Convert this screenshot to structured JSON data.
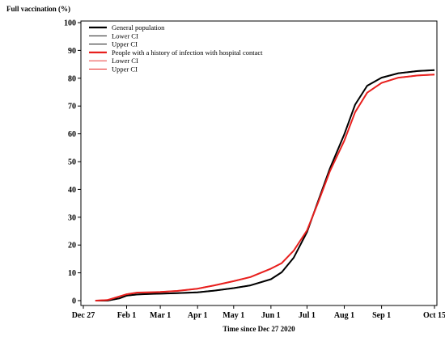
{
  "chart_data": {
    "type": "line",
    "ylabel": "Full vaccination (%)",
    "xlabel": "Time since Dec 27 2020",
    "ylim": [
      0,
      100
    ],
    "yticks": [
      0,
      10,
      20,
      30,
      40,
      50,
      60,
      70,
      80,
      90,
      100
    ],
    "xlim": [
      "2020-12-27",
      "2021-10-15"
    ],
    "xticks": [
      {
        "date": "2020-12-27",
        "label": "Dec 27"
      },
      {
        "date": "2021-02-01",
        "label": "Feb 1"
      },
      {
        "date": "2021-03-01",
        "label": "Mar 1"
      },
      {
        "date": "2021-04-01",
        "label": "Apr 1"
      },
      {
        "date": "2021-05-01",
        "label": "May 1"
      },
      {
        "date": "2021-06-01",
        "label": "Jun 1"
      },
      {
        "date": "2021-07-01",
        "label": "Jul 1"
      },
      {
        "date": "2021-08-01",
        "label": "Aug 1"
      },
      {
        "date": "2021-09-01",
        "label": "Sep 1"
      },
      {
        "date": "2021-10-15",
        "label": "Oct 15"
      }
    ],
    "grid": false,
    "legend_position": "top-left",
    "legend": [
      {
        "label": "General population",
        "color": "#000000",
        "style": "thick"
      },
      {
        "label": "Lower CI",
        "color": "#000000",
        "style": "thin"
      },
      {
        "label": "Upper CI",
        "color": "#000000",
        "style": "thin"
      },
      {
        "label": "People with a history of infection with hospital contact",
        "color": "#e8201e",
        "style": "thick"
      },
      {
        "label": "Lower CI",
        "color": "#e8201e",
        "style": "thin"
      },
      {
        "label": "Upper CI",
        "color": "#e8201e",
        "style": "thin"
      }
    ],
    "series": [
      {
        "name": "General population",
        "color": "#000000",
        "points": [
          [
            "2021-01-06",
            0
          ],
          [
            "2021-01-16",
            0
          ],
          [
            "2021-01-26",
            0.8
          ],
          [
            "2021-02-01",
            1.8
          ],
          [
            "2021-02-10",
            2.2
          ],
          [
            "2021-02-20",
            2.4
          ],
          [
            "2021-03-01",
            2.5
          ],
          [
            "2021-03-15",
            2.7
          ],
          [
            "2021-04-01",
            3.0
          ],
          [
            "2021-04-15",
            3.6
          ],
          [
            "2021-05-01",
            4.5
          ],
          [
            "2021-05-15",
            5.5
          ],
          [
            "2021-06-01",
            7.7
          ],
          [
            "2021-06-10",
            10.2
          ],
          [
            "2021-06-20",
            15.5
          ],
          [
            "2021-07-01",
            24.7
          ],
          [
            "2021-07-10",
            35.5
          ],
          [
            "2021-07-20",
            47.5
          ],
          [
            "2021-08-01",
            59.8
          ],
          [
            "2021-08-10",
            70.5
          ],
          [
            "2021-08-20",
            77.3
          ],
          [
            "2021-09-01",
            80.2
          ],
          [
            "2021-09-15",
            81.8
          ],
          [
            "2021-10-01",
            82.6
          ],
          [
            "2021-10-15",
            82.9
          ]
        ]
      },
      {
        "name": "People with a history of infection with hospital contact",
        "color": "#e8201e",
        "points": [
          [
            "2021-01-06",
            0
          ],
          [
            "2021-01-16",
            0.2
          ],
          [
            "2021-01-26",
            1.5
          ],
          [
            "2021-02-01",
            2.3
          ],
          [
            "2021-02-10",
            2.9
          ],
          [
            "2021-02-20",
            3.0
          ],
          [
            "2021-03-01",
            3.1
          ],
          [
            "2021-03-15",
            3.5
          ],
          [
            "2021-04-01",
            4.3
          ],
          [
            "2021-04-15",
            5.5
          ],
          [
            "2021-05-01",
            7.0
          ],
          [
            "2021-05-15",
            8.5
          ],
          [
            "2021-06-01",
            11.5
          ],
          [
            "2021-06-10",
            13.5
          ],
          [
            "2021-06-20",
            18.0
          ],
          [
            "2021-07-01",
            25.3
          ],
          [
            "2021-07-10",
            35.0
          ],
          [
            "2021-07-20",
            46.5
          ],
          [
            "2021-08-01",
            57.5
          ],
          [
            "2021-08-10",
            67.8
          ],
          [
            "2021-08-20",
            74.8
          ],
          [
            "2021-09-01",
            78.3
          ],
          [
            "2021-09-15",
            80.2
          ],
          [
            "2021-10-01",
            81.0
          ],
          [
            "2021-10-15",
            81.3
          ]
        ]
      }
    ]
  }
}
